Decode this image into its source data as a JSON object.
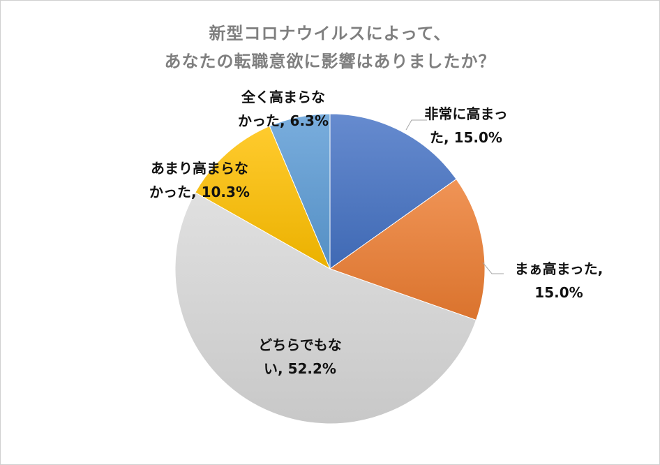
{
  "chart_data": {
    "type": "pie",
    "title_lines": [
      "新型コロナウイルスによって、",
      "あなたの転職意欲に影響はありましたか？"
    ],
    "slices": [
      {
        "label_lines": [
          "非常に高まっ",
          "た, 15.0%"
        ],
        "value": 15.0,
        "color": "#4472c4"
      },
      {
        "label_lines": [
          "まぁ高まった,",
          "15.0%"
        ],
        "value": 15.0,
        "color": "#ed7d31"
      },
      {
        "label_lines": [
          "どちらでもな",
          "い, 52.2%"
        ],
        "value": 52.2,
        "color": "#d9d9d9"
      },
      {
        "label_lines": [
          "あまり高まらな",
          "かった, 10.3%"
        ],
        "value": 10.3,
        "color": "#ffc000"
      },
      {
        "label_lines": [
          "全く高まらな",
          "かった, 6.3%"
        ],
        "value": 6.3,
        "color": "#5b9bd5"
      }
    ],
    "start_angle": "12 o'clock",
    "direction": "clockwise",
    "legend": "none",
    "data_labels": true
  }
}
